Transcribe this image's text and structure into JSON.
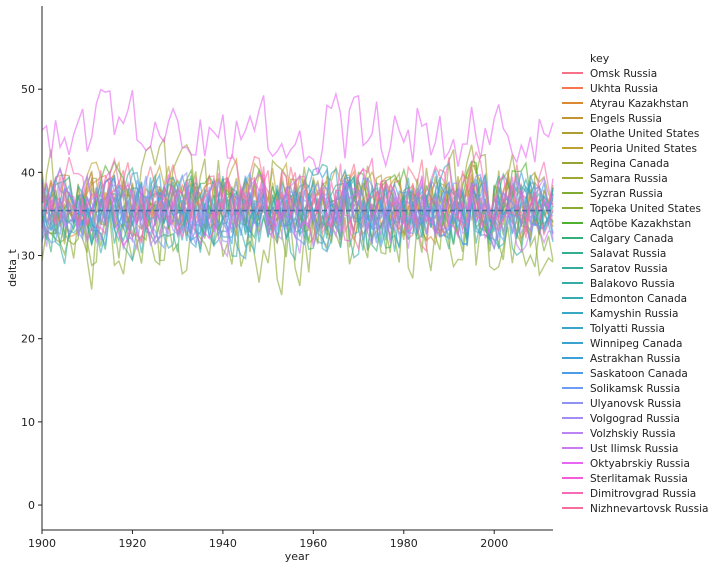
{
  "chart_data": {
    "type": "line",
    "title": "",
    "xlabel": "year",
    "ylabel": "delta_t",
    "xlim": [
      1900,
      2013
    ],
    "ylim": [
      -3,
      60
    ],
    "x_ticks": [
      1900,
      1920,
      1940,
      1960,
      1980,
      2000
    ],
    "y_ticks": [
      0,
      10,
      20,
      30,
      40,
      50
    ],
    "grid": false,
    "mean_line": 35.4,
    "mean_line_color": "#4a6fa5",
    "legend": {
      "title": "key",
      "placement": "right"
    },
    "series": [
      {
        "name": "Omsk Russia",
        "color": "#f77189",
        "mean": 37.5,
        "spread": 4.0
      },
      {
        "name": "Ukhta Russia",
        "color": "#f7754f",
        "mean": 36.0,
        "spread": 3.5
      },
      {
        "name": "Atyrau Kazakhstan",
        "color": "#dc8932",
        "mean": 35.0,
        "spread": 3.0
      },
      {
        "name": "Engels Russia",
        "color": "#c39532",
        "mean": 36.0,
        "spread": 3.5
      },
      {
        "name": "Olathe United States",
        "color": "#ae9d31",
        "mean": 36.5,
        "spread": 4.0
      },
      {
        "name": "Peoria United States",
        "color": "#bda232",
        "mean": 37.0,
        "spread": 4.0
      },
      {
        "name": "Regina Canada",
        "color": "#97a431",
        "mean": 37.0,
        "spread": 5.5
      },
      {
        "name": "Samara Russia",
        "color": "#a0a832",
        "mean": 36.0,
        "spread": 4.0
      },
      {
        "name": "Syzran Russia",
        "color": "#80ab31",
        "mean": 34.0,
        "spread": 5.0
      },
      {
        "name": "Topeka United States",
        "color": "#8aaa31",
        "mean": 31.0,
        "spread": 5.5
      },
      {
        "name": "Aqtöbe Kazakhstan",
        "color": "#50b131",
        "mean": 36.0,
        "spread": 4.5
      },
      {
        "name": "Calgary Canada",
        "color": "#33b07a",
        "mean": 34.5,
        "spread": 4.0
      },
      {
        "name": "Salavat Russia",
        "color": "#34ae91",
        "mean": 36.0,
        "spread": 4.0
      },
      {
        "name": "Saratov Russia",
        "color": "#35ac9e",
        "mean": 35.5,
        "spread": 4.0
      },
      {
        "name": "Balakovo Russia",
        "color": "#36ada4",
        "mean": 34.0,
        "spread": 4.5
      },
      {
        "name": "Edmonton Canada",
        "color": "#37abb4",
        "mean": 33.5,
        "spread": 4.0
      },
      {
        "name": "Kamyshin Russia",
        "color": "#38a9c5",
        "mean": 35.5,
        "spread": 4.0
      },
      {
        "name": "Tolyatti Russia",
        "color": "#3aa5c9",
        "mean": 36.0,
        "spread": 4.0
      },
      {
        "name": "Winnipeg Canada",
        "color": "#3ba3d0",
        "mean": 35.5,
        "spread": 4.5
      },
      {
        "name": "Astrakhan Russia",
        "color": "#3ea0d6",
        "mean": 36.5,
        "spread": 3.5
      },
      {
        "name": "Saskatoon Canada",
        "color": "#4b9ce9",
        "mean": 34.5,
        "spread": 4.0
      },
      {
        "name": "Solikamsk Russia",
        "color": "#6e9bf4",
        "mean": 36.0,
        "spread": 4.0
      },
      {
        "name": "Ulyanovsk Russia",
        "color": "#8e92f3",
        "mean": 35.5,
        "spread": 4.0
      },
      {
        "name": "Volgograd Russia",
        "color": "#a48cf4",
        "mean": 36.0,
        "spread": 3.5
      },
      {
        "name": "Volzhskiy Russia",
        "color": "#bb83f4",
        "mean": 35.0,
        "spread": 4.0
      },
      {
        "name": "Ust Ilimsk Russia",
        "color": "#cc7af4",
        "mean": 34.5,
        "spread": 4.0
      },
      {
        "name": "Oktyabrskiy Russia",
        "color": "#e866f4",
        "mean": 45.0,
        "spread": 4.5
      },
      {
        "name": "Sterlitamak Russia",
        "color": "#f45cdc",
        "mean": 36.0,
        "spread": 4.0
      },
      {
        "name": "Dimitrovgrad Russia",
        "color": "#f76bb4",
        "mean": 37.5,
        "spread": 4.5
      },
      {
        "name": "Nizhnevartovsk Russia",
        "color": "#f66e9e",
        "mean": 35.5,
        "spread": 4.0
      }
    ]
  }
}
